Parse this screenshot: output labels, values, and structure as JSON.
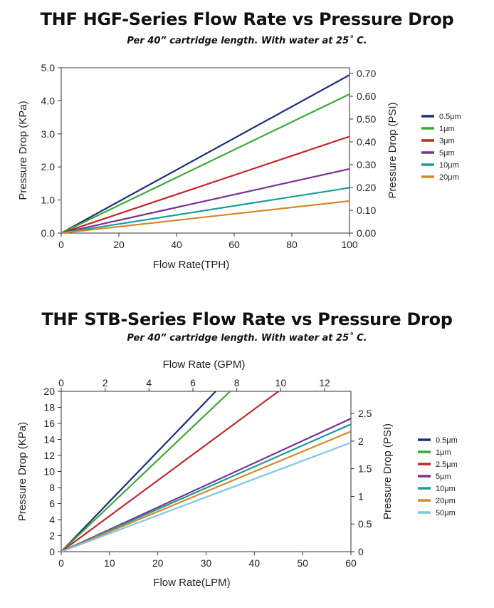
{
  "chart_data": [
    {
      "type": "line",
      "title": "THF HGF-Series Flow Rate vs Pressure Drop",
      "subtitle": "Per 40” cartridge length. With water at 25˚ C.",
      "xlabel": "Flow Rate(TPH)",
      "ylabel": "Pressure Drop (KPa)",
      "y2label": "Pressure Drop (PSI)",
      "xlim": [
        0,
        100
      ],
      "ylim": [
        0,
        5.0
      ],
      "y2lim": [
        0,
        0.725
      ],
      "x_ticks": [
        "0",
        "20",
        "40",
        "60",
        "80",
        "100"
      ],
      "x_tick_values": [
        0,
        20,
        40,
        60,
        80,
        100
      ],
      "y_ticks": [
        "0.0",
        "1.0",
        "2.0",
        "3.0",
        "4.0",
        "5.0"
      ],
      "y_tick_values": [
        0,
        1,
        2,
        3,
        4,
        5
      ],
      "y2_ticks": [
        "0.00",
        "0.10",
        "0.20",
        "0.30",
        "0.40",
        "0.50",
        "0.60",
        "0.70"
      ],
      "y2_tick_values": [
        0,
        0.1,
        0.2,
        0.3,
        0.4,
        0.5,
        0.6,
        0.7
      ],
      "grid": false,
      "legend_position": "right",
      "series": [
        {
          "name": "0.5μm",
          "color": "#1f2d7b",
          "x": [
            0,
            100
          ],
          "values": [
            0,
            4.78
          ]
        },
        {
          "name": "1μm",
          "color": "#3aaa35",
          "x": [
            0,
            100
          ],
          "values": [
            0,
            4.2
          ]
        },
        {
          "name": "3μm",
          "color": "#c1272d",
          "x": [
            0,
            100
          ],
          "values": [
            0,
            2.92
          ]
        },
        {
          "name": "5μm",
          "color": "#7b3294",
          "x": [
            0,
            100
          ],
          "values": [
            0,
            1.94
          ]
        },
        {
          "name": "10μm",
          "color": "#1a9c99",
          "x": [
            0,
            100
          ],
          "values": [
            0,
            1.37
          ]
        },
        {
          "name": "20μm",
          "color": "#d3892a",
          "x": [
            0,
            100
          ],
          "values": [
            0,
            0.97
          ]
        }
      ]
    },
    {
      "type": "line",
      "title": "THF STB-Series Flow Rate vs Pressure Drop",
      "subtitle": "Per 40” cartridge length. With water at 25˚ C.",
      "xlabel": "Flow Rate(LPM)",
      "x2label": "Flow Rate (GPM)",
      "ylabel": "Pressure Drop (KPa)",
      "y2label": "Pressure Drop (PSI)",
      "xlim": [
        0,
        60
      ],
      "x2lim": [
        0,
        13.2
      ],
      "ylim": [
        0,
        20
      ],
      "y2lim": [
        0,
        2.9
      ],
      "x_ticks": [
        "0",
        "10",
        "20",
        "30",
        "40",
        "50",
        "60"
      ],
      "x_tick_values": [
        0,
        10,
        20,
        30,
        40,
        50,
        60
      ],
      "x2_ticks": [
        "0",
        "2",
        "4",
        "6",
        "8",
        "10",
        "12"
      ],
      "x2_tick_values": [
        0,
        2,
        4,
        6,
        8,
        10,
        12
      ],
      "y_ticks": [
        "0",
        "2",
        "4",
        "6",
        "8",
        "10",
        "12",
        "14",
        "16",
        "18",
        "20"
      ],
      "y_tick_values": [
        0,
        2,
        4,
        6,
        8,
        10,
        12,
        14,
        16,
        18,
        20
      ],
      "y2_ticks": [
        "0",
        "0.5",
        "1",
        "1.5",
        "2",
        "2.5"
      ],
      "y2_tick_values": [
        0,
        0.5,
        1,
        1.5,
        2,
        2.5
      ],
      "grid": false,
      "legend_position": "right",
      "series": [
        {
          "name": "0.5μm",
          "color": "#1f2d7b",
          "x": [
            0,
            32
          ],
          "values": [
            0,
            20
          ]
        },
        {
          "name": "1μm",
          "color": "#3aaa35",
          "x": [
            0,
            35
          ],
          "values": [
            0,
            20
          ]
        },
        {
          "name": "2.5μm",
          "color": "#c1272d",
          "x": [
            0,
            45
          ],
          "values": [
            0,
            20
          ]
        },
        {
          "name": "5μm",
          "color": "#7b3294",
          "x": [
            0,
            60
          ],
          "values": [
            0,
            16.6
          ]
        },
        {
          "name": "10μm",
          "color": "#1a9c99",
          "x": [
            0,
            60
          ],
          "values": [
            0,
            15.9
          ]
        },
        {
          "name": "20μm",
          "color": "#d3892a",
          "x": [
            0,
            60
          ],
          "values": [
            0,
            15.0
          ]
        },
        {
          "name": "50μm",
          "color": "#7ec8e3",
          "x": [
            0,
            60
          ],
          "values": [
            0,
            13.6
          ]
        }
      ]
    }
  ]
}
